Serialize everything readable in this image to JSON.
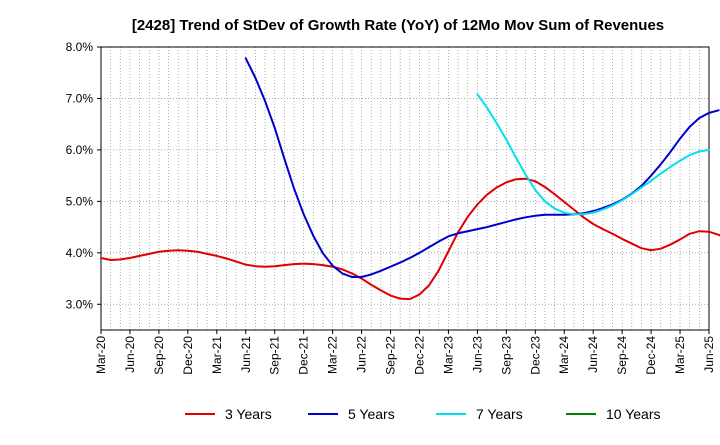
{
  "chart_data": {
    "type": "line",
    "title": "[2428]  Trend of StDev of Growth Rate (YoY) of 12Mo Mov Sum of Revenues",
    "xlabel": "",
    "ylabel": "",
    "ylim": [
      2.5,
      8.0
    ],
    "y_ticks": [
      3.0,
      4.0,
      5.0,
      6.0,
      7.0,
      8.0
    ],
    "y_tick_labels": [
      "3.0%",
      "4.0%",
      "5.0%",
      "6.0%",
      "7.0%",
      "8.0%"
    ],
    "x_start": "Mar-20",
    "x_tick_labels": [
      "Mar-20",
      "Jun-20",
      "Sep-20",
      "Dec-20",
      "Mar-21",
      "Jun-21",
      "Sep-21",
      "Dec-21",
      "Mar-22",
      "Jun-22",
      "Sep-22",
      "Dec-22",
      "Mar-23",
      "Jun-23",
      "Sep-23",
      "Dec-23",
      "Mar-24",
      "Jun-24",
      "Sep-24",
      "Dec-24",
      "Mar-25",
      "Jun-25"
    ],
    "x_tick_month_index": [
      0,
      3,
      6,
      9,
      12,
      15,
      18,
      21,
      24,
      27,
      30,
      33,
      36,
      39,
      42,
      45,
      48,
      51,
      54,
      57,
      60,
      63
    ],
    "x_max_index": 63,
    "grid": true,
    "legend_position": "bottom",
    "series": [
      {
        "name": "3 Years",
        "color": "#e00000",
        "start_index": 0,
        "values": [
          3.9,
          3.86,
          3.87,
          3.9,
          3.94,
          3.98,
          4.02,
          4.04,
          4.05,
          4.04,
          4.02,
          3.98,
          3.94,
          3.89,
          3.83,
          3.77,
          3.74,
          3.73,
          3.74,
          3.76,
          3.78,
          3.79,
          3.78,
          3.76,
          3.73,
          3.68,
          3.6,
          3.5,
          3.38,
          3.27,
          3.17,
          3.11,
          3.1,
          3.19,
          3.37,
          3.66,
          4.03,
          4.4,
          4.7,
          4.94,
          5.13,
          5.27,
          5.37,
          5.43,
          5.44,
          5.39,
          5.28,
          5.14,
          4.99,
          4.84,
          4.69,
          4.56,
          4.46,
          4.37,
          4.27,
          4.18,
          4.09,
          4.05,
          4.08,
          4.16,
          4.26,
          4.37,
          4.42,
          4.41,
          4.35,
          4.25
        ]
      },
      {
        "name": "5 Years",
        "color": "#0000cc",
        "start_index": 15,
        "values": [
          7.78,
          7.4,
          6.95,
          6.43,
          5.83,
          5.25,
          4.75,
          4.33,
          3.99,
          3.75,
          3.6,
          3.53,
          3.53,
          3.58,
          3.65,
          3.73,
          3.81,
          3.9,
          4.0,
          4.11,
          4.22,
          4.32,
          4.38,
          4.42,
          4.46,
          4.5,
          4.55,
          4.6,
          4.65,
          4.69,
          4.72,
          4.74,
          4.74,
          4.74,
          4.75,
          4.77,
          4.81,
          4.87,
          4.94,
          5.03,
          5.15,
          5.3,
          5.5,
          5.72,
          5.96,
          6.22,
          6.45,
          6.62,
          6.72,
          6.77
        ]
      },
      {
        "name": "7 Years",
        "color": "#00e0ee",
        "start_index": 39,
        "values": [
          7.08,
          6.82,
          6.52,
          6.2,
          5.85,
          5.52,
          5.22,
          5.0,
          4.86,
          4.78,
          4.75,
          4.75,
          4.78,
          4.84,
          4.92,
          5.02,
          5.14,
          5.27,
          5.4,
          5.54,
          5.67,
          5.79,
          5.9,
          5.97,
          6.0
        ]
      },
      {
        "name": "10 Years",
        "color": "#008000",
        "start_index": 0,
        "values": []
      }
    ]
  }
}
